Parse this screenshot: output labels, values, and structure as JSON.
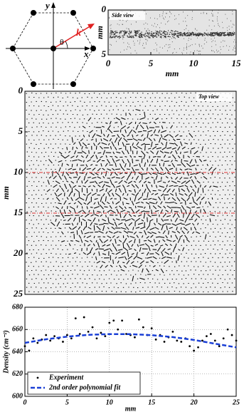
{
  "diagram": {
    "axis_y": "y",
    "axis_x": "x",
    "vector": "k",
    "angle": "θ"
  },
  "chart_data": [
    {
      "type": "image",
      "annotation": "Side view",
      "xlabel": "mm",
      "ylabel": "mm",
      "xlim": [
        0,
        15
      ],
      "xticks": [
        0,
        5,
        10,
        15
      ],
      "ylim": [
        5,
        0
      ],
      "yticks": [
        0,
        5
      ]
    },
    {
      "type": "image",
      "annotation": "Top view",
      "ylabel": "mm",
      "xlim": [
        0,
        25
      ],
      "ylim": [
        25,
        0
      ],
      "yticks": [
        0,
        5,
        10,
        15,
        20,
        25
      ],
      "hlines": [
        10,
        15
      ],
      "hline_color": "#e03030"
    },
    {
      "type": "scatter",
      "xlabel": "mm",
      "ylabel": "Density (cm⁻²)",
      "xlim": [
        0,
        25
      ],
      "xticks": [
        0,
        5,
        10,
        15,
        20,
        25
      ],
      "ylim": [
        600,
        680
      ],
      "yticks": [
        600,
        620,
        640,
        660,
        680
      ],
      "grid": true,
      "legend": "lower left",
      "series": [
        {
          "name": "Experiment",
          "type": "scatter",
          "color": "#000000",
          "x": [
            0,
            0.5,
            1,
            1.5,
            2,
            2.5,
            3,
            3.5,
            4,
            4.5,
            5,
            5.5,
            6,
            6.5,
            7,
            7.5,
            8,
            8.5,
            9,
            9.5,
            10,
            10.5,
            11,
            11.5,
            12,
            12.5,
            13,
            13.5,
            14,
            14.5,
            15,
            15.5,
            16,
            16.5,
            17,
            17.5,
            18,
            18.5,
            19,
            19.5,
            20,
            20.5,
            21,
            21.5,
            22,
            22.5,
            23,
            23.5,
            24,
            24.5,
            25
          ],
          "values": [
            645,
            641,
            652,
            648,
            651,
            655,
            650,
            654,
            652,
            649,
            655,
            652,
            670,
            656,
            671,
            658,
            662,
            652,
            657,
            654,
            666,
            668,
            660,
            668,
            656,
            655,
            653,
            669,
            662,
            655,
            661,
            651,
            655,
            649,
            653,
            658,
            650,
            649,
            652,
            645,
            641,
            644,
            650,
            654,
            656,
            650,
            645,
            652,
            660,
            655,
            650
          ]
        },
        {
          "name": "2nd order polynomial fit",
          "type": "line",
          "color": "#1a3fd6",
          "x": [
            0,
            2.5,
            5,
            7.5,
            10,
            12.5,
            15,
            17.5,
            20,
            22.5,
            25
          ],
          "values": [
            648,
            651.2,
            653.6,
            655.2,
            655.9,
            655.8,
            654.9,
            653.2,
            650.6,
            647.2,
            644
          ]
        }
      ]
    }
  ]
}
